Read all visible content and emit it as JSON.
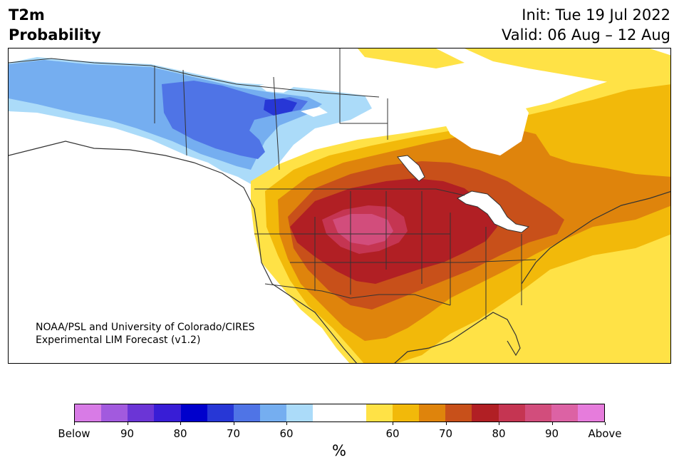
{
  "header": {
    "variable_line1": "T2m",
    "variable_line2": "Probability",
    "init_label": "Init: Tue 19 Jul 2022",
    "valid_label": "Valid: 06 Aug – 12 Aug"
  },
  "map": {
    "region": "North America",
    "credit_line1": "NOAA/PSL and University of Colorado/CIRES",
    "credit_line2": "Experimental LIM Forecast (v1.2)",
    "colors": {
      "land_background": "#ffffff",
      "borders": "#333333"
    }
  },
  "colorbar": {
    "unit": "%",
    "colors": [
      "#d87be6",
      "#a25ade",
      "#6b35d6",
      "#381dd6",
      "#0000cc",
      "#2737d6",
      "#4f74e6",
      "#75aef0",
      "#abdbf9",
      "#ffffff",
      "#ffffff",
      "#ffe246",
      "#f2b90a",
      "#df840c",
      "#c8501a",
      "#b11f24",
      "#c53552",
      "#d24d7c",
      "#dc62a4",
      "#e67cdc"
    ],
    "tick_labels": [
      "Below",
      "90",
      "80",
      "70",
      "60",
      "60",
      "70",
      "80",
      "90",
      "Above"
    ]
  }
}
